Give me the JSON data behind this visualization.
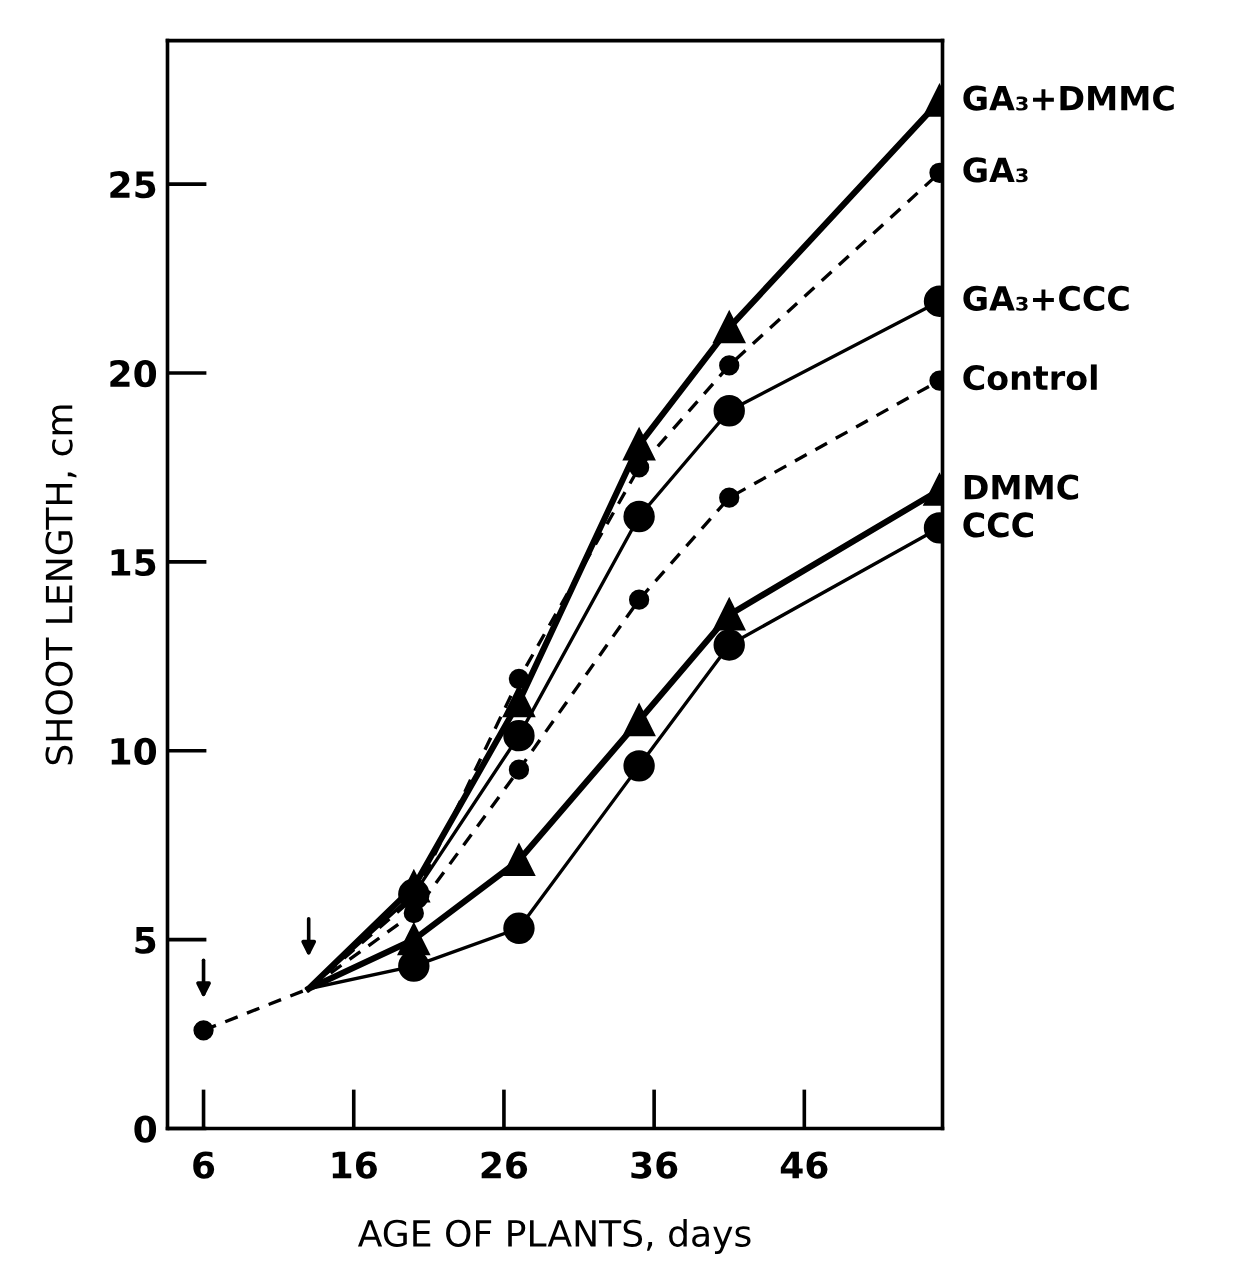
{
  "chart_data": {
    "type": "line",
    "xlabel": "AGE OF PLANTS, days",
    "ylabel": "SHOOT LENGTH, cm",
    "xlim": [
      3.6,
      55.2
    ],
    "xticks": [
      6,
      16,
      26,
      36,
      46
    ],
    "ylim": [
      0,
      28.8
    ],
    "yticks": [
      0,
      5,
      10,
      15,
      20,
      25
    ],
    "grid": false,
    "legend": false,
    "series": [
      {
        "name": "GA₃+DMMC",
        "color": "#000000",
        "marker": "triangle",
        "line_style": "solid",
        "x": [
          13,
          20,
          27,
          35,
          41,
          55
        ],
        "values": [
          3.7,
          6.4,
          11.3,
          18.1,
          21.2,
          27.2
        ]
      },
      {
        "name": "GA₃",
        "color": "#000000",
        "marker": "circle",
        "line_style": "dashed",
        "x": [
          13,
          20,
          27,
          35,
          41,
          55
        ],
        "values": [
          3.7,
          6.1,
          11.9,
          17.5,
          20.2,
          25.3
        ]
      },
      {
        "name": "GA₃+CCC",
        "color": "#000000",
        "marker": "circle",
        "line_style": "solid",
        "x": [
          13,
          20,
          27,
          35,
          41,
          55
        ],
        "values": [
          3.7,
          6.2,
          10.4,
          16.2,
          19.0,
          21.9
        ]
      },
      {
        "name": "Control",
        "color": "#000000",
        "marker": "circle",
        "line_style": "dashed",
        "x": [
          6,
          13,
          20,
          27,
          35,
          41,
          55
        ],
        "values": [
          2.6,
          3.7,
          5.7,
          9.5,
          14.0,
          16.7,
          19.8
        ]
      },
      {
        "name": "DMMC",
        "color": "#000000",
        "marker": "triangle",
        "line_style": "solid",
        "x": [
          13,
          20,
          27,
          35,
          41,
          55
        ],
        "values": [
          3.7,
          5.0,
          7.1,
          10.8,
          13.6,
          16.9
        ]
      },
      {
        "name": "CCC",
        "color": "#000000",
        "marker": "circle",
        "line_style": "solid",
        "x": [
          13,
          20,
          27,
          35,
          41,
          55
        ],
        "values": [
          3.7,
          4.3,
          5.3,
          9.6,
          12.8,
          15.9
        ]
      }
    ]
  }
}
